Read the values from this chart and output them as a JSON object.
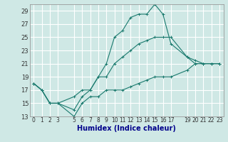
{
  "xlabel": "Humidex (Indice chaleur)",
  "ylabel": "",
  "bg_color": "#cfe8e5",
  "grid_color": "#ffffff",
  "line_color": "#1a7a6e",
  "xlim": [
    -0.5,
    23.5
  ],
  "ylim": [
    13,
    30
  ],
  "xticks": [
    0,
    1,
    2,
    3,
    5,
    6,
    7,
    8,
    9,
    10,
    11,
    12,
    13,
    14,
    15,
    16,
    17,
    19,
    20,
    21,
    22,
    23
  ],
  "yticks": [
    13,
    15,
    17,
    19,
    21,
    23,
    25,
    27,
    29
  ],
  "series_x": [
    0,
    1,
    2,
    3,
    5,
    6,
    7,
    8,
    9,
    10,
    11,
    12,
    13,
    14,
    15,
    16,
    17,
    19,
    20,
    21,
    22,
    23
  ],
  "series": [
    [
      18,
      17,
      15,
      15,
      16,
      17,
      17,
      19,
      21,
      25,
      26,
      28,
      28.5,
      28.5,
      30,
      28.5,
      24,
      22,
      21.5,
      21,
      21,
      21
    ],
    [
      18,
      17,
      15,
      15,
      14,
      16,
      17,
      19,
      19,
      21,
      22,
      23,
      24,
      24.5,
      25,
      25,
      25,
      22,
      21,
      21,
      21,
      21
    ],
    [
      18,
      17,
      15,
      15,
      13,
      15,
      16,
      16,
      17,
      17,
      17,
      17.5,
      18,
      18.5,
      19,
      19,
      19,
      20,
      21,
      21,
      21,
      21
    ]
  ],
  "xlabel_color": "#00008b",
  "xlabel_fontsize": 7,
  "tick_fontsize": 5.5,
  "ytick_fontsize": 6
}
